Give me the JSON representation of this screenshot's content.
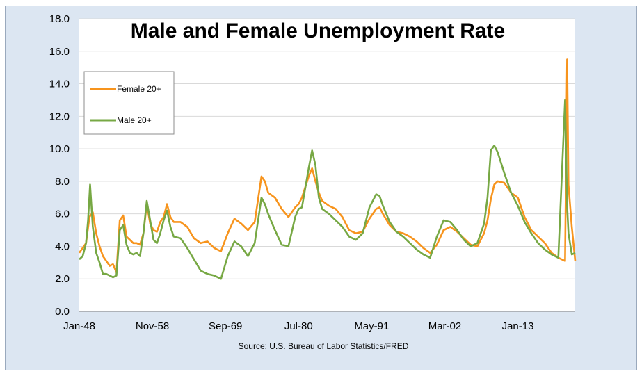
{
  "chart_data": {
    "type": "line",
    "title": "Male and Female Unemployment Rate",
    "source": "Source: U.S. Bureau of Labor Statistics/FRED",
    "xlabel": "",
    "ylabel": "",
    "ylim": [
      0,
      18
    ],
    "y_ticks": [
      "0.0",
      "2.0",
      "4.0",
      "6.0",
      "8.0",
      "10.0",
      "12.0",
      "14.0",
      "16.0",
      "18.0"
    ],
    "x_tick_labels": [
      "Jan-48",
      "Nov-58",
      "Sep-69",
      "Jul-80",
      "May-91",
      "Mar-02",
      "Jan-13"
    ],
    "x_tick_years": [
      1948.0,
      1958.83,
      1969.67,
      1980.5,
      1991.33,
      2002.17,
      2013.0
    ],
    "xlim": [
      1948.0,
      2021.5
    ],
    "grid": "horizontal",
    "legend_position": "top-left",
    "series": [
      {
        "name": "Female 20+",
        "color": "#f7941d",
        "x": [
          1948.0,
          1948.5,
          1949.0,
          1949.5,
          1950.0,
          1950.5,
          1951.0,
          1951.5,
          1952.0,
          1952.5,
          1953.0,
          1953.5,
          1954.0,
          1954.5,
          1955.0,
          1955.5,
          1956.0,
          1956.5,
          1957.0,
          1957.5,
          1958.0,
          1958.5,
          1959.0,
          1959.5,
          1960.0,
          1960.5,
          1961.0,
          1961.5,
          1962.0,
          1963.0,
          1964.0,
          1965.0,
          1966.0,
          1967.0,
          1968.0,
          1969.0,
          1970.0,
          1971.0,
          1972.0,
          1973.0,
          1974.0,
          1975.0,
          1975.5,
          1976.0,
          1977.0,
          1978.0,
          1979.0,
          1980.0,
          1980.5,
          1981.0,
          1982.0,
          1982.5,
          1983.0,
          1983.5,
          1984.0,
          1985.0,
          1986.0,
          1987.0,
          1988.0,
          1989.0,
          1990.0,
          1991.0,
          1992.0,
          1992.5,
          1993.0,
          1994.0,
          1995.0,
          1996.0,
          1997.0,
          1998.0,
          1999.0,
          2000.0,
          2001.0,
          2002.0,
          2003.0,
          2004.0,
          2005.0,
          2006.0,
          2007.0,
          2008.0,
          2008.5,
          2009.0,
          2009.5,
          2010.0,
          2011.0,
          2012.0,
          2013.0,
          2014.0,
          2015.0,
          2016.0,
          2017.0,
          2018.0,
          2019.0,
          2020.0,
          2020.3,
          2020.5,
          2021.0,
          2021.5
        ],
        "y": [
          3.6,
          3.9,
          4.2,
          5.8,
          6.1,
          4.8,
          4.0,
          3.4,
          3.1,
          2.8,
          2.9,
          2.4,
          5.6,
          5.9,
          4.6,
          4.4,
          4.2,
          4.2,
          4.1,
          4.8,
          6.6,
          5.4,
          5.0,
          4.9,
          5.5,
          5.8,
          6.6,
          5.8,
          5.5,
          5.5,
          5.2,
          4.5,
          4.2,
          4.3,
          3.9,
          3.7,
          4.8,
          5.7,
          5.4,
          5.0,
          5.5,
          8.3,
          8.0,
          7.3,
          7.0,
          6.3,
          5.8,
          6.4,
          6.6,
          7.0,
          8.3,
          8.8,
          8.0,
          7.3,
          6.8,
          6.5,
          6.3,
          5.8,
          5.0,
          4.8,
          4.9,
          5.7,
          6.3,
          6.4,
          6.0,
          5.3,
          4.9,
          4.8,
          4.6,
          4.3,
          3.9,
          3.6,
          4.1,
          5.0,
          5.2,
          4.9,
          4.5,
          4.1,
          4.0,
          4.8,
          5.6,
          6.9,
          7.8,
          8.0,
          7.9,
          7.3,
          7.0,
          5.8,
          5.0,
          4.6,
          4.2,
          3.6,
          3.3,
          3.1,
          15.5,
          7.8,
          5.2,
          3.1
        ]
      },
      {
        "name": "Male 20+",
        "color": "#77a844",
        "x": [
          1948.0,
          1948.5,
          1949.0,
          1949.3,
          1949.6,
          1950.0,
          1950.5,
          1951.0,
          1951.5,
          1952.0,
          1952.5,
          1953.0,
          1953.5,
          1954.0,
          1954.5,
          1955.0,
          1955.5,
          1956.0,
          1956.5,
          1957.0,
          1957.5,
          1958.0,
          1958.5,
          1959.0,
          1959.5,
          1960.0,
          1960.5,
          1961.0,
          1961.5,
          1962.0,
          1963.0,
          1964.0,
          1965.0,
          1966.0,
          1967.0,
          1968.0,
          1969.0,
          1970.0,
          1971.0,
          1972.0,
          1973.0,
          1974.0,
          1975.0,
          1975.5,
          1976.0,
          1977.0,
          1978.0,
          1979.0,
          1980.0,
          1980.5,
          1981.0,
          1982.0,
          1982.5,
          1983.0,
          1983.5,
          1984.0,
          1985.0,
          1986.0,
          1987.0,
          1988.0,
          1989.0,
          1990.0,
          1991.0,
          1992.0,
          1992.5,
          1993.0,
          1994.0,
          1995.0,
          1996.0,
          1997.0,
          1998.0,
          1999.0,
          2000.0,
          2001.0,
          2002.0,
          2003.0,
          2004.0,
          2005.0,
          2006.0,
          2007.0,
          2008.0,
          2008.5,
          2009.0,
          2009.5,
          2010.0,
          2011.0,
          2012.0,
          2013.0,
          2014.0,
          2015.0,
          2016.0,
          2017.0,
          2018.0,
          2019.0,
          2020.0,
          2020.3,
          2020.5,
          2021.0,
          2021.5
        ],
        "y": [
          3.2,
          3.4,
          4.2,
          5.6,
          7.8,
          5.2,
          3.6,
          3.0,
          2.3,
          2.3,
          2.2,
          2.1,
          2.2,
          5.0,
          5.3,
          4.1,
          3.6,
          3.5,
          3.6,
          3.4,
          4.8,
          6.8,
          5.6,
          4.4,
          4.2,
          4.8,
          5.6,
          6.2,
          5.2,
          4.6,
          4.5,
          3.9,
          3.2,
          2.5,
          2.3,
          2.2,
          2.0,
          3.4,
          4.3,
          4.0,
          3.4,
          4.2,
          7.0,
          6.6,
          6.0,
          5.0,
          4.1,
          4.0,
          5.8,
          6.3,
          6.4,
          8.8,
          9.9,
          9.0,
          7.0,
          6.3,
          6.0,
          5.6,
          5.2,
          4.6,
          4.4,
          4.8,
          6.4,
          7.2,
          7.1,
          6.5,
          5.5,
          4.9,
          4.6,
          4.2,
          3.8,
          3.5,
          3.3,
          4.6,
          5.6,
          5.5,
          5.0,
          4.4,
          4.0,
          4.2,
          5.4,
          7.0,
          9.9,
          10.2,
          9.8,
          8.5,
          7.3,
          6.5,
          5.5,
          4.8,
          4.2,
          3.8,
          3.5,
          3.3,
          13.0,
          6.5,
          4.8,
          3.5,
          3.6
        ]
      }
    ]
  }
}
